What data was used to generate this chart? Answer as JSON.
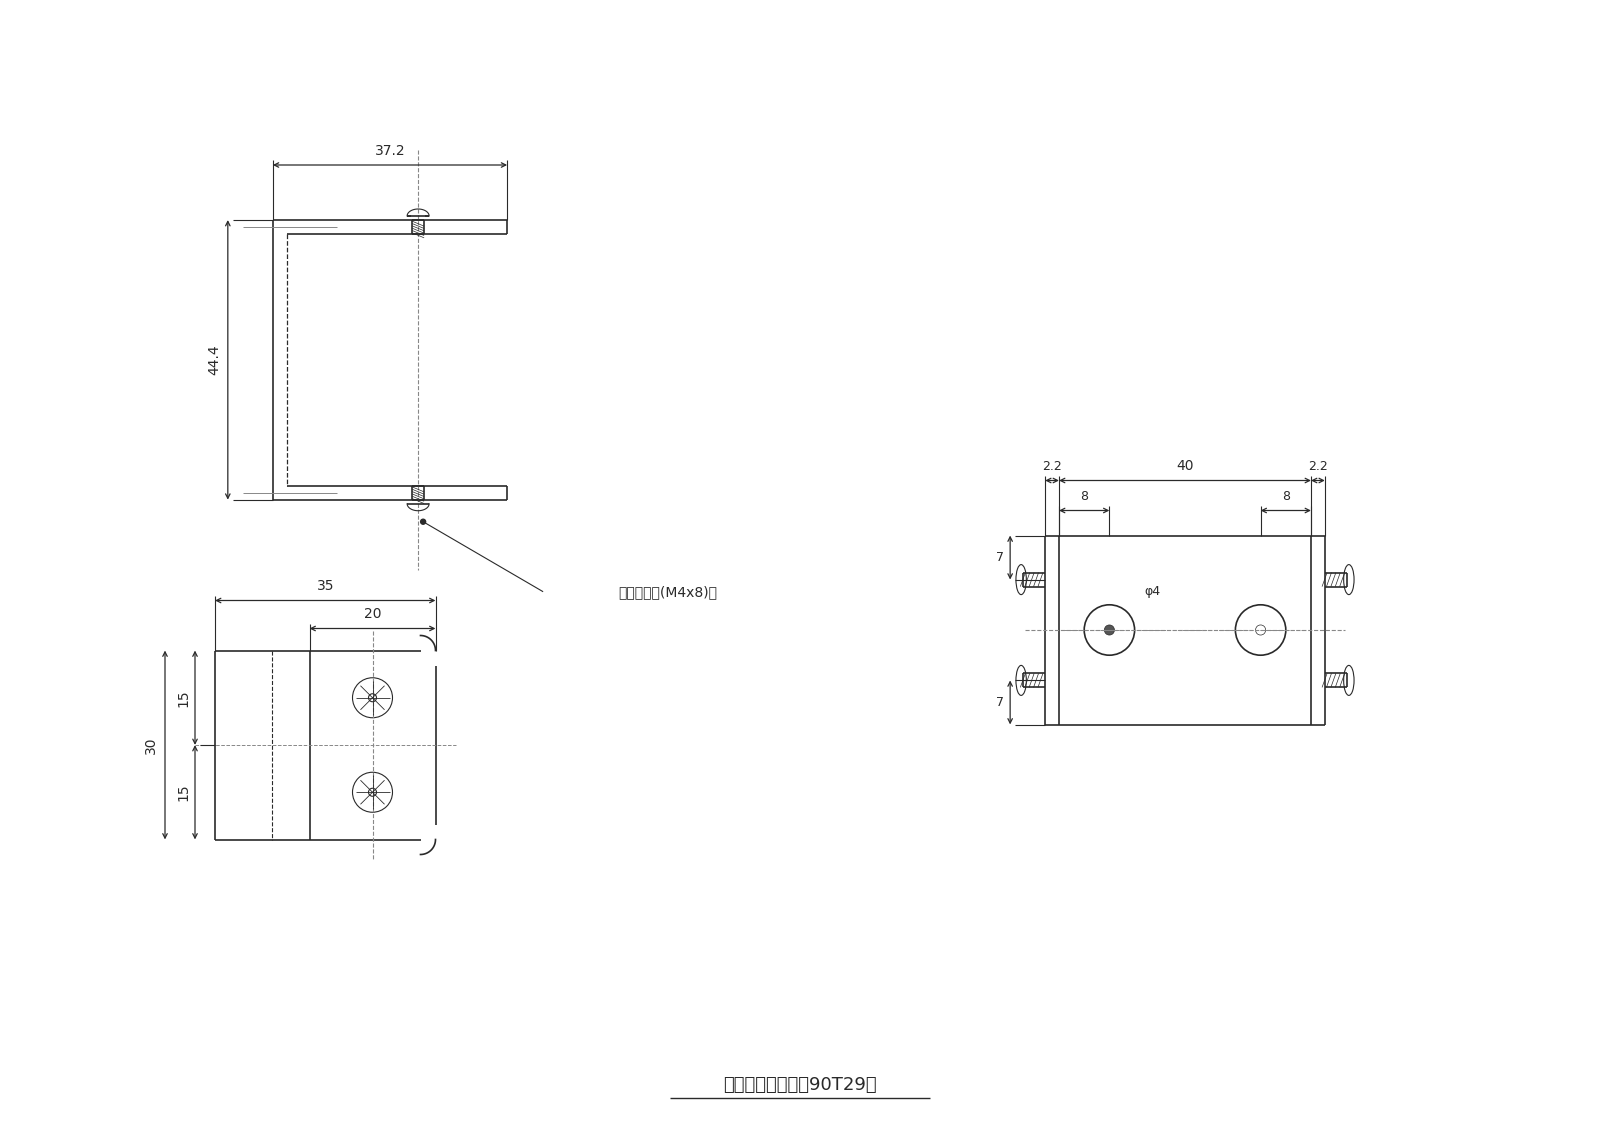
{
  "bg_color": "#ffffff",
  "line_color": "#2a2a2a",
  "center_line_color": "#888888",
  "title": "間仕切固定金具（90T29）",
  "annotation_screw": "ナベ小ネジ(M4x8)付",
  "dim_width_top": "37.2",
  "dim_height_side": "44.4",
  "dim_width_bottom": "35",
  "dim_width_inner": "20",
  "dim_height_30": "30",
  "dim_height_15a": "15",
  "dim_height_15b": "15",
  "dim_right_total": "40",
  "dim_right_left": "2.2",
  "dim_right_right": "2.2",
  "dim_right_8a": "8",
  "dim_right_8b": "8",
  "dim_right_7a": "7",
  "dim_right_7b": "7",
  "dim_phi": "φ4"
}
